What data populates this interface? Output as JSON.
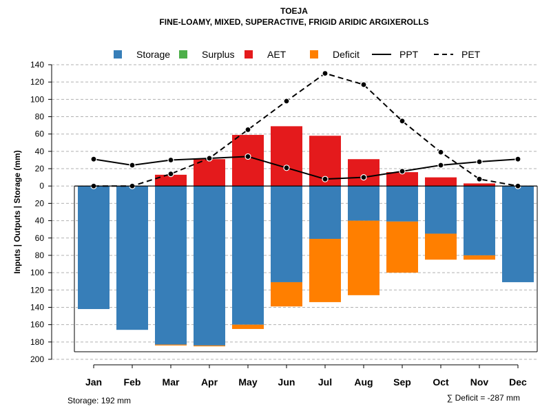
{
  "chart_data": {
    "type": "bar",
    "title": "TOEJA",
    "subtitle": "FINE-LOAMY, MIXED, SUPERACTIVE, FRIGID ARIDIC ARGIXEROLLS",
    "ylabel": "Inputs | Outputs | Storage    (mm)",
    "ylim": [
      -200,
      140
    ],
    "yticks": [
      140,
      120,
      100,
      80,
      60,
      40,
      20,
      0,
      -20,
      -40,
      -60,
      -80,
      -100,
      -120,
      -140,
      -160,
      -180,
      -200
    ],
    "ytick_labels": [
      "140",
      "120",
      "100",
      "80",
      "60",
      "40",
      "20",
      "0",
      "20",
      "40",
      "60",
      "80",
      "100",
      "120",
      "140",
      "160",
      "180",
      "200"
    ],
    "categories": [
      "Jan",
      "Feb",
      "Mar",
      "Apr",
      "May",
      "Jun",
      "Jul",
      "Aug",
      "Sep",
      "Oct",
      "Nov",
      "Dec"
    ],
    "legend": {
      "position": "top",
      "items": [
        {
          "label": "Storage",
          "kind": "box",
          "color": "#377EB8"
        },
        {
          "label": "Surplus",
          "kind": "box",
          "color": "#4DAF4A"
        },
        {
          "label": "AET",
          "kind": "box",
          "color": "#E41A1C"
        },
        {
          "label": "Deficit",
          "kind": "box",
          "color": "#FF7F00"
        },
        {
          "label": "PPT",
          "kind": "line",
          "dash": "solid",
          "color": "#000000"
        },
        {
          "label": "PET",
          "kind": "line",
          "dash": "dashed",
          "color": "#000000"
        }
      ]
    },
    "series": [
      {
        "name": "Storage",
        "color": "#377EB8",
        "values": [
          -142,
          -166,
          -183,
          -184,
          -160,
          -111,
          -61,
          -40,
          -41,
          -55,
          -80,
          -111
        ]
      },
      {
        "name": "Surplus",
        "color": "#4DAF4A",
        "values": [
          0,
          0,
          0,
          0,
          0,
          0,
          0,
          0,
          0,
          0,
          0,
          0
        ]
      },
      {
        "name": "AET",
        "color": "#E41A1C",
        "values": [
          0,
          0,
          13,
          31,
          59,
          69,
          58,
          31,
          16,
          10,
          3,
          0
        ]
      },
      {
        "name": "Deficit",
        "color": "#FF7F00",
        "values": [
          0,
          0,
          -1,
          -1,
          -5,
          -28,
          -73,
          -86,
          -59,
          -30,
          -5,
          0
        ]
      },
      {
        "name": "PPT",
        "color": "#000000",
        "line": "solid",
        "values": [
          31,
          24,
          30,
          32,
          34,
          21,
          8,
          10,
          17,
          24,
          28,
          31
        ]
      },
      {
        "name": "PET",
        "color": "#000000",
        "line": "dashed",
        "values": [
          0,
          0,
          14,
          32,
          65,
          98,
          130,
          117,
          75,
          39,
          8,
          0
        ]
      }
    ],
    "grid": true,
    "footer_left": "Storage: 192 mm",
    "footer_right": "∑ Deficit = -287 mm"
  }
}
